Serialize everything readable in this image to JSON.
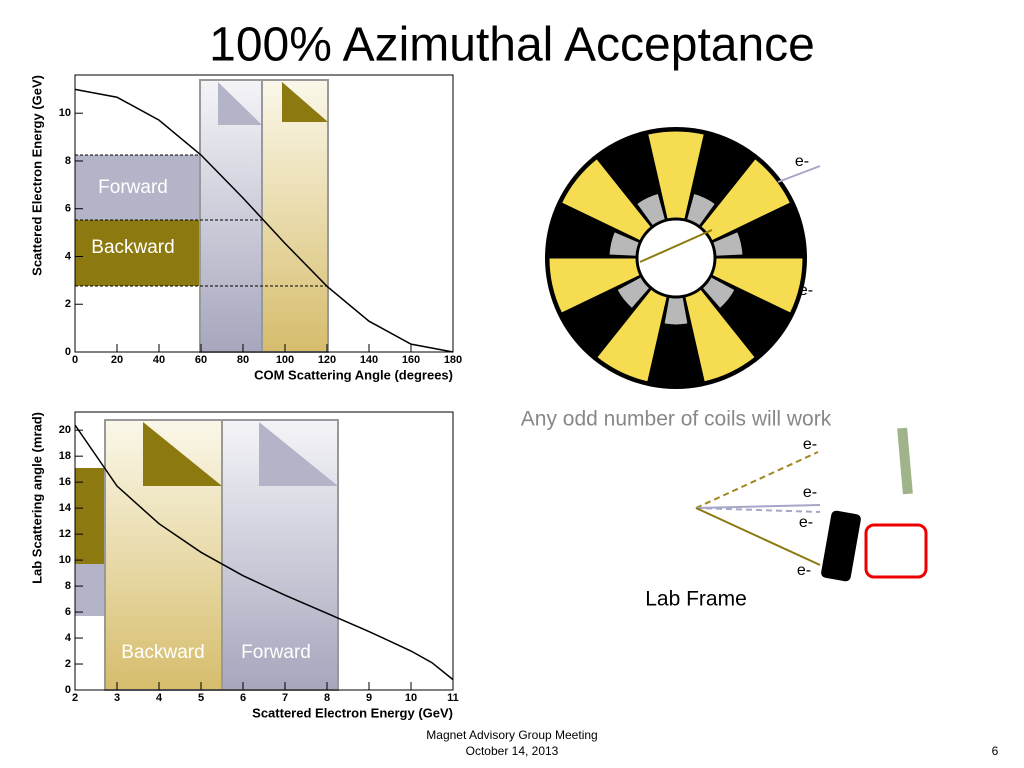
{
  "title": "100% Azimuthal Acceptance",
  "chart_data": [
    {
      "type": "line",
      "x_label": "COM Scattering Angle (degrees)",
      "y_label": "Scattered Electron Energy (GeV)",
      "x": [
        0,
        20,
        40,
        60,
        80,
        100,
        120,
        140,
        160,
        180
      ],
      "values": [
        11,
        10.67,
        9.71,
        8.25,
        6.45,
        4.55,
        2.75,
        1.29,
        0.33,
        0
      ],
      "color": "#000000",
      "xlim": [
        0,
        180
      ],
      "xticks": [
        0,
        20,
        40,
        60,
        80,
        100,
        120,
        140,
        160,
        180
      ],
      "ylim": [
        0,
        11.6
      ],
      "yticks": [
        0,
        2,
        4,
        6,
        8,
        10
      ],
      "annotations": [
        "Forward",
        "Backward"
      ]
    },
    {
      "type": "line",
      "x_label": "Scattered Electron Energy (GeV)",
      "y_label": "Lab Scattering angle (mrad)",
      "x": [
        2,
        3,
        4,
        5,
        6,
        7,
        8,
        9,
        10,
        10.5,
        11
      ],
      "values": [
        20.4,
        15.7,
        12.8,
        10.6,
        8.8,
        7.3,
        5.9,
        4.5,
        3.0,
        2.1,
        0.8
      ],
      "color": "#000000",
      "xlim": [
        2,
        11
      ],
      "xticks": [
        2,
        3,
        4,
        5,
        6,
        7,
        8,
        9,
        10,
        11
      ],
      "ylim": [
        0,
        21.4
      ],
      "yticks": [
        0,
        2,
        4,
        6,
        8,
        10,
        12,
        14,
        16,
        18,
        20
      ],
      "annotations": [
        "Backward",
        "Forward"
      ]
    }
  ],
  "coil_diagram": {
    "labels": [
      "e-",
      "e-"
    ],
    "caption": "Any odd number of coils will work"
  },
  "lab_frame": {
    "labels": [
      "e-",
      "e-",
      "e-",
      "e-"
    ],
    "caption": "Lab Frame"
  },
  "footer": {
    "meeting": "Magnet Advisory Group  Meeting",
    "date": "October 14, 2013",
    "page": "6"
  }
}
